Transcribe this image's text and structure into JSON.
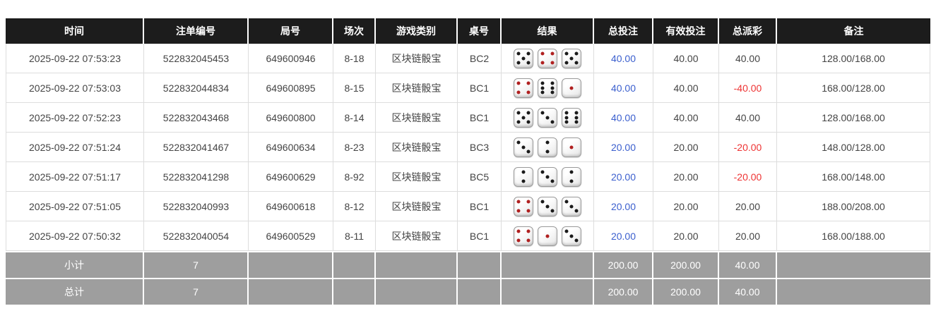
{
  "colors": {
    "header_bg": "#1c1c1c",
    "footer_bg": "#9e9e9e",
    "bet_blue": "#3b5fce",
    "negative_red": "#ee3333",
    "dice_red_pip": "#b02020",
    "body_border": "#dddddd"
  },
  "table": {
    "columns": [
      {
        "key": "time",
        "label": "时间"
      },
      {
        "key": "bet-id",
        "label": "注单编号"
      },
      {
        "key": "round-id",
        "label": "局号"
      },
      {
        "key": "session",
        "label": "场次"
      },
      {
        "key": "game-type",
        "label": "游戏类别"
      },
      {
        "key": "table-id",
        "label": "桌号"
      },
      {
        "key": "result",
        "label": "结果"
      },
      {
        "key": "total-bet",
        "label": "总投注"
      },
      {
        "key": "valid-bet",
        "label": "有效投注"
      },
      {
        "key": "payout",
        "label": "总派彩"
      },
      {
        "key": "remark",
        "label": "备注"
      }
    ],
    "rows": [
      {
        "time": "2025-09-22 07:53:23",
        "bet_id": "522832045453",
        "round_id": "649600946",
        "session": "8-18",
        "game_type": "区块链骰宝",
        "table_id": "BC2",
        "dice": [
          5,
          4,
          5
        ],
        "total_bet": "40.00",
        "valid_bet": "40.00",
        "payout": "40.00",
        "remark": "128.00/168.00"
      },
      {
        "time": "2025-09-22 07:53:03",
        "bet_id": "522832044834",
        "round_id": "649600895",
        "session": "8-15",
        "game_type": "区块链骰宝",
        "table_id": "BC1",
        "dice": [
          4,
          6,
          1
        ],
        "total_bet": "40.00",
        "valid_bet": "40.00",
        "payout": "-40.00",
        "remark": "168.00/128.00"
      },
      {
        "time": "2025-09-22 07:52:23",
        "bet_id": "522832043468",
        "round_id": "649600800",
        "session": "8-14",
        "game_type": "区块链骰宝",
        "table_id": "BC1",
        "dice": [
          5,
          3,
          6
        ],
        "total_bet": "40.00",
        "valid_bet": "40.00",
        "payout": "40.00",
        "remark": "128.00/168.00"
      },
      {
        "time": "2025-09-22 07:51:24",
        "bet_id": "522832041467",
        "round_id": "649600634",
        "session": "8-23",
        "game_type": "区块链骰宝",
        "table_id": "BC3",
        "dice": [
          3,
          2,
          1
        ],
        "total_bet": "20.00",
        "valid_bet": "20.00",
        "payout": "-20.00",
        "remark": "148.00/128.00"
      },
      {
        "time": "2025-09-22 07:51:17",
        "bet_id": "522832041298",
        "round_id": "649600629",
        "session": "8-92",
        "game_type": "区块链骰宝",
        "table_id": "BC5",
        "dice": [
          2,
          3,
          2
        ],
        "total_bet": "20.00",
        "valid_bet": "20.00",
        "payout": "-20.00",
        "remark": "168.00/148.00"
      },
      {
        "time": "2025-09-22 07:51:05",
        "bet_id": "522832040993",
        "round_id": "649600618",
        "session": "8-12",
        "game_type": "区块链骰宝",
        "table_id": "BC1",
        "dice": [
          4,
          3,
          3
        ],
        "total_bet": "20.00",
        "valid_bet": "20.00",
        "payout": "20.00",
        "remark": "188.00/208.00"
      },
      {
        "time": "2025-09-22 07:50:32",
        "bet_id": "522832040054",
        "round_id": "649600529",
        "session": "8-11",
        "game_type": "区块链骰宝",
        "table_id": "BC1",
        "dice": [
          4,
          1,
          3
        ],
        "total_bet": "20.00",
        "valid_bet": "20.00",
        "payout": "20.00",
        "remark": "168.00/188.00"
      }
    ],
    "footer": [
      {
        "label": "小计",
        "count": "7",
        "total_bet": "200.00",
        "valid_bet": "200.00",
        "payout": "40.00",
        "remark": ""
      },
      {
        "label": "总计",
        "count": "7",
        "total_bet": "200.00",
        "valid_bet": "200.00",
        "payout": "40.00",
        "remark": ""
      }
    ]
  }
}
